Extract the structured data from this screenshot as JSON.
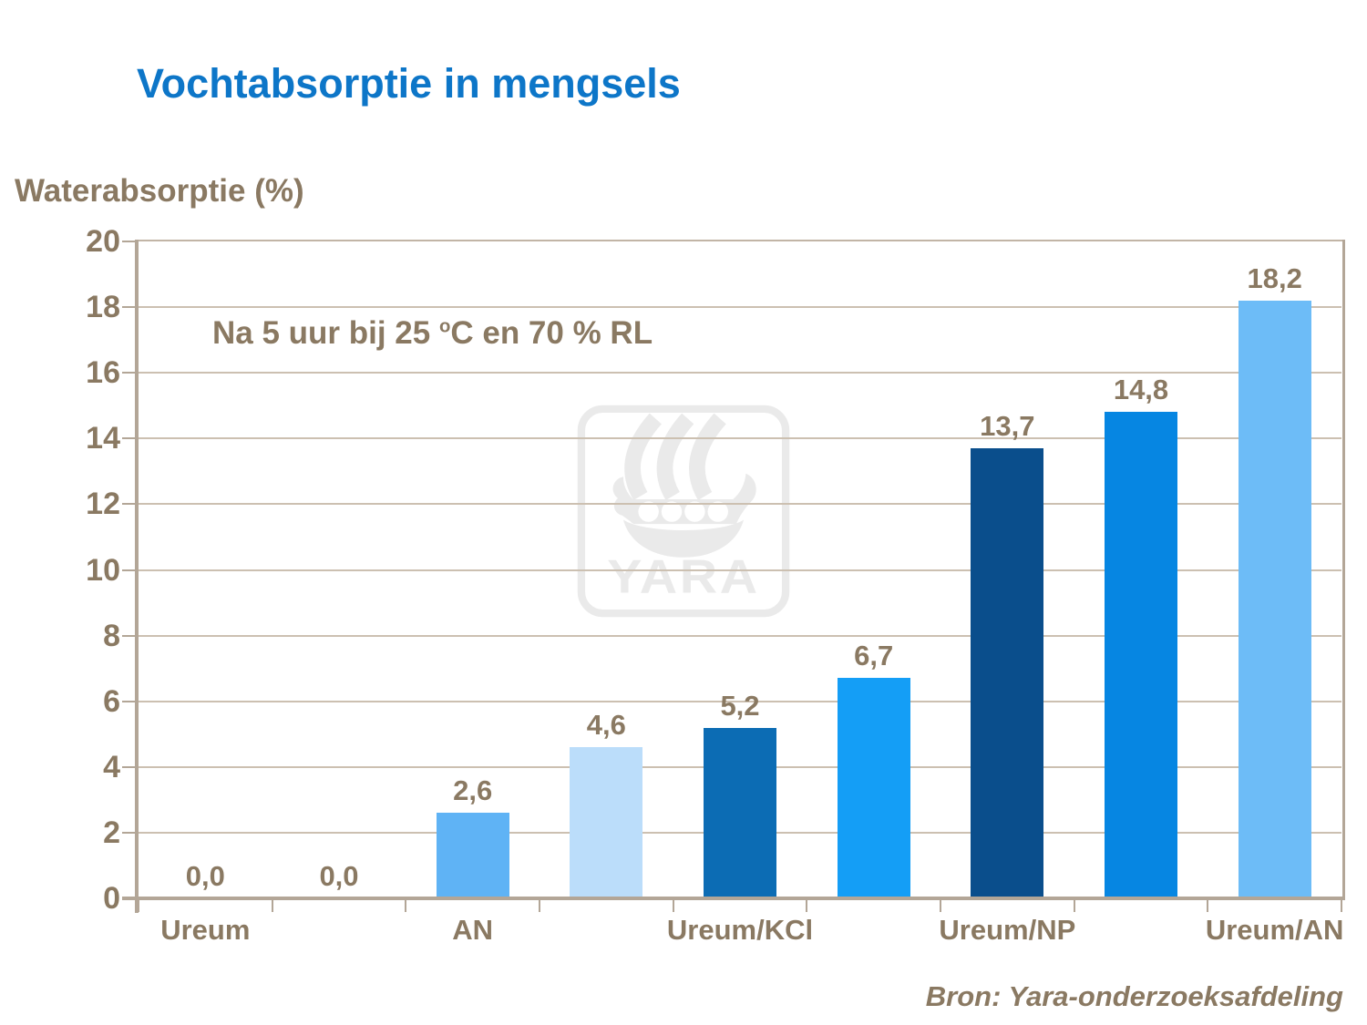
{
  "title": "Vochtabsorptie in mengsels",
  "y_axis_title": "Waterabsorptie (%)",
  "annotation": {
    "part1": "Na 5 uur bij 25 ",
    "sup": "o",
    "part2": "C en 70 % RL"
  },
  "watermark": {
    "label": "YARA"
  },
  "source": "Bron: Yara-onderzoeksafdeling",
  "colors": {
    "title_blue": "#0D76C8",
    "text_brown": "#8A7962",
    "axis_tan": "#B3A697",
    "gridline_tan": "#CCC0B1",
    "watermark_gray": "#EAEAEA"
  },
  "chart_data": {
    "type": "bar",
    "title": "Vochtabsorptie in mengsels",
    "ylabel": "Waterabsorptie (%)",
    "xlabel": "",
    "ylim": [
      0,
      20
    ],
    "yticks": [
      0,
      2,
      4,
      6,
      8,
      10,
      12,
      14,
      16,
      18,
      20
    ],
    "grid": true,
    "legend": "none",
    "annotation": "Na 5 uur bij 25 °C en 70 % RL",
    "source": "Bron: Yara-onderzoeksafdeling",
    "categories": [
      "Ureum",
      "AN",
      "Ureum/KCl",
      "Ureum/NP",
      "Ureum/AN"
    ],
    "category_slot_indexes": [
      0,
      2,
      4,
      6,
      8
    ],
    "bars": [
      {
        "slot": 0,
        "category": "Ureum",
        "value": 0.0,
        "label": "0,0",
        "color": null
      },
      {
        "slot": 1,
        "category": "Ureum",
        "value": 0.0,
        "label": "0,0",
        "color": null
      },
      {
        "slot": 2,
        "category": "AN",
        "value": 2.6,
        "label": "2,6",
        "color": "#5FB3F5"
      },
      {
        "slot": 3,
        "category": "AN",
        "value": 4.6,
        "label": "4,6",
        "color": "#BBDDFA"
      },
      {
        "slot": 4,
        "category": "Ureum/KCl",
        "value": 5.2,
        "label": "5,2",
        "color": "#0C6CB4"
      },
      {
        "slot": 5,
        "category": "Ureum/KCl",
        "value": 6.7,
        "label": "6,7",
        "color": "#149EF6"
      },
      {
        "slot": 6,
        "category": "Ureum/NP",
        "value": 13.7,
        "label": "13,7",
        "color": "#0A4E8C"
      },
      {
        "slot": 7,
        "category": "Ureum/NP",
        "value": 14.8,
        "label": "14,8",
        "color": "#0686E2"
      },
      {
        "slot": 8,
        "category": "Ureum/AN",
        "value": 18.2,
        "label": "18,2",
        "color": "#6DBCF7"
      }
    ]
  }
}
